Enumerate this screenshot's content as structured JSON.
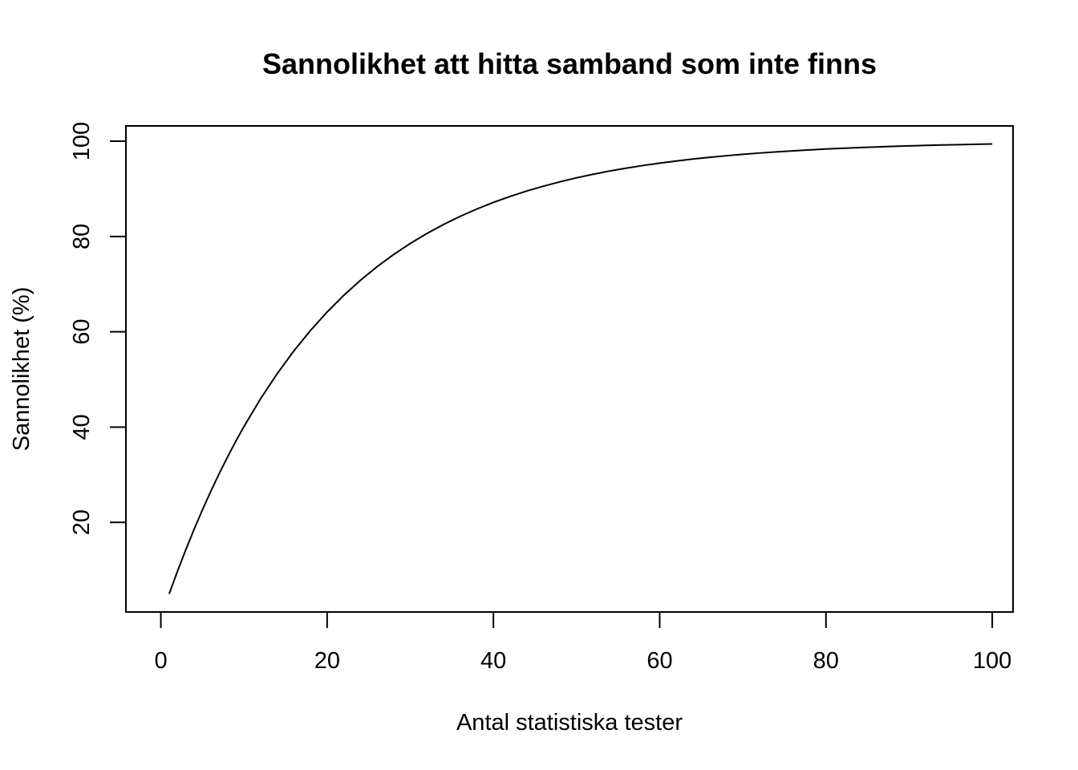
{
  "chart_data": {
    "type": "line",
    "title": "Sannolikhet att hitta samband som inte finns",
    "xlabel": "Antal statistiska tester",
    "ylabel": "Sannolikhet (%)",
    "xlim": [
      -4.2,
      102.5
    ],
    "ylim": [
      1.2,
      103.2
    ],
    "x_ticks": [
      0,
      20,
      40,
      60,
      80,
      100
    ],
    "y_ticks": [
      20,
      40,
      60,
      80,
      100
    ],
    "x_tick_labels": [
      "0",
      "20",
      "40",
      "60",
      "80",
      "100"
    ],
    "y_tick_labels": [
      "20",
      "40",
      "60",
      "80",
      "100"
    ],
    "grid": false,
    "legend": "none",
    "line_color": "#000000",
    "series": [
      {
        "x": [
          1,
          2,
          3,
          4,
          5,
          6,
          7,
          8,
          9,
          10,
          12,
          14,
          16,
          18,
          20,
          22,
          24,
          26,
          28,
          30,
          32,
          34,
          36,
          38,
          40,
          42,
          44,
          46,
          48,
          50,
          52,
          54,
          56,
          58,
          60,
          62,
          64,
          66,
          68,
          70,
          72,
          74,
          76,
          78,
          80,
          82,
          84,
          86,
          88,
          90,
          92,
          94,
          96,
          98,
          100
        ],
        "values": [
          5.0,
          9.75,
          14.26,
          18.55,
          22.62,
          26.49,
          30.17,
          33.66,
          36.98,
          40.13,
          45.96,
          51.23,
          55.99,
          60.28,
          64.15,
          67.65,
          70.8,
          73.65,
          76.22,
          78.54,
          80.63,
          82.52,
          84.22,
          85.76,
          87.15,
          88.4,
          89.53,
          90.55,
          91.47,
          92.31,
          93.06,
          93.74,
          94.35,
          94.9,
          95.39,
          95.84,
          96.25,
          96.61,
          96.94,
          97.24,
          97.51,
          97.75,
          97.97,
          98.17,
          98.35,
          98.51,
          98.66,
          98.79,
          98.91,
          99.01,
          99.11,
          99.2,
          99.27,
          99.34,
          99.41
        ]
      }
    ]
  }
}
